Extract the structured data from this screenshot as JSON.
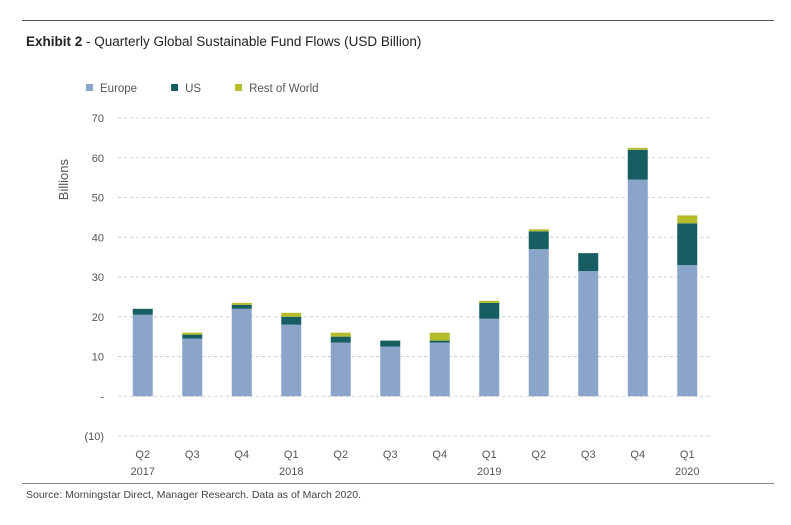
{
  "title": {
    "exhibit": "Exhibit 2",
    "text": " - Quarterly Global Sustainable Fund Flows (USD Billion)"
  },
  "source": "Source: Morningstar Direct, Manager Research. Data as of March 2020.",
  "colors": {
    "europe": "#8aa5c9",
    "us": "#175e62",
    "rest_of_world": "#b5bd2a",
    "grid": "#cfcfcf",
    "text": "#555555"
  },
  "chart_data": {
    "type": "bar",
    "stacked": true,
    "ylabel": "Billions",
    "ylim": [
      -10,
      70
    ],
    "yticks": [
      70,
      60,
      50,
      40,
      30,
      20,
      10,
      0,
      -10
    ],
    "ytick_labels": [
      "70",
      "60",
      "50",
      "40",
      "30",
      "20",
      "10",
      "-",
      "(10)"
    ],
    "grid": true,
    "legend_position": "top-left",
    "categories": [
      {
        "label": "Q2",
        "year": "2017"
      },
      {
        "label": "Q3",
        "year": ""
      },
      {
        "label": "Q4",
        "year": ""
      },
      {
        "label": "Q1",
        "year": "2018"
      },
      {
        "label": "Q2",
        "year": ""
      },
      {
        "label": "Q3",
        "year": ""
      },
      {
        "label": "Q4",
        "year": ""
      },
      {
        "label": "Q1",
        "year": "2019"
      },
      {
        "label": "Q2",
        "year": ""
      },
      {
        "label": "Q3",
        "year": ""
      },
      {
        "label": "Q4",
        "year": ""
      },
      {
        "label": "Q1",
        "year": "2020"
      }
    ],
    "series": [
      {
        "name": "Europe",
        "color": "#8aa5c9",
        "values": [
          20.5,
          14.5,
          22.0,
          18.0,
          13.5,
          12.5,
          13.5,
          19.5,
          37.0,
          31.5,
          54.5,
          33.0
        ]
      },
      {
        "name": "US",
        "color": "#175e62",
        "values": [
          1.5,
          1.0,
          1.0,
          2.0,
          1.5,
          1.5,
          0.5,
          4.0,
          4.5,
          4.5,
          7.5,
          10.5
        ]
      },
      {
        "name": "Rest of World",
        "color": "#b5bd2a",
        "values": [
          0.0,
          0.5,
          0.5,
          1.0,
          1.0,
          0.0,
          2.0,
          0.5,
          0.5,
          0.0,
          0.5,
          2.0
        ]
      }
    ]
  }
}
